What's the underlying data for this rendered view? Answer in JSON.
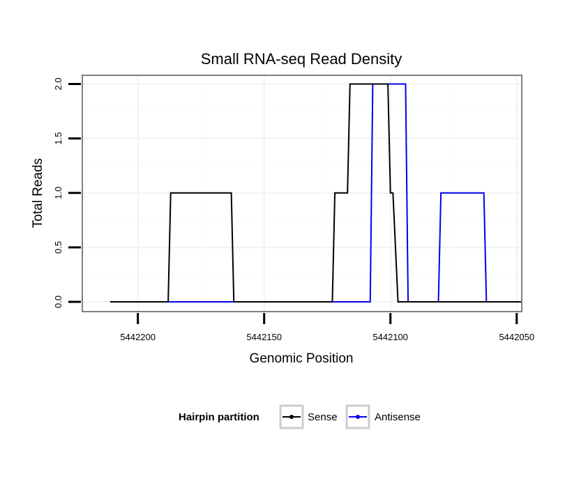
{
  "chart_data": {
    "type": "line",
    "title": "Small RNA-seq Read Density",
    "xlabel": "Genomic Position",
    "ylabel": "Total Reads",
    "x_reversed": true,
    "xlim": [
      5442222,
      5442048
    ],
    "ylim": [
      -0.09,
      2.08
    ],
    "xticks": [
      5442200,
      5442150,
      5442100,
      5442050
    ],
    "xtick_labels": [
      "5442200",
      "5442150",
      "5442100",
      "5442050"
    ],
    "yticks": [
      0,
      0.5,
      1,
      1.5,
      2
    ],
    "ytick_labels": [
      "0.0",
      "0.5",
      "1.0",
      "1.5",
      "2.0"
    ],
    "grid": true,
    "legend": {
      "title": "Hairpin partition",
      "position": "bottom",
      "entries": [
        "Sense",
        "Antisense"
      ]
    },
    "series": [
      {
        "name": "Sense",
        "color": "#000000",
        "points": [
          [
            5442211,
            0
          ],
          [
            5442188,
            0
          ],
          [
            5442187,
            1
          ],
          [
            5442163,
            1
          ],
          [
            5442162,
            0
          ],
          [
            5442123,
            0
          ],
          [
            5442122,
            1
          ],
          [
            5442117,
            1
          ],
          [
            5442116,
            2
          ],
          [
            5442101,
            2
          ],
          [
            5442100,
            1
          ],
          [
            5442099,
            1
          ],
          [
            5442097,
            0
          ],
          [
            5442048,
            0
          ]
        ]
      },
      {
        "name": "Antisense",
        "color": "#0000ee",
        "points": [
          [
            5442188,
            0
          ],
          [
            5442162,
            0
          ],
          [
            5442108,
            0
          ],
          [
            5442107,
            2
          ],
          [
            5442094,
            2
          ],
          [
            5442093,
            0
          ],
          [
            5442081,
            0
          ],
          [
            5442080,
            1
          ],
          [
            5442063,
            1
          ],
          [
            5442062,
            0
          ],
          [
            5442057,
            0
          ]
        ]
      }
    ]
  }
}
